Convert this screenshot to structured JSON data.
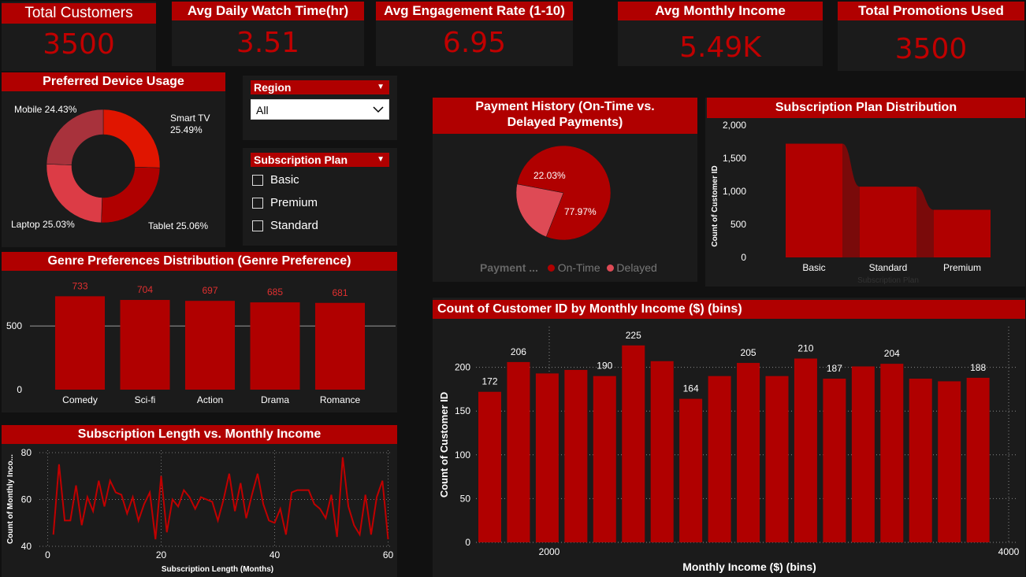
{
  "kpis": [
    {
      "title": "Total Customers",
      "value": "3500"
    },
    {
      "title": "Avg Daily Watch Time(hr)",
      "value": "3.51"
    },
    {
      "title": "Avg Engagement Rate (1-10)",
      "value": "6.95"
    },
    {
      "title": "Avg Monthly Income",
      "value": "5.49K"
    },
    {
      "title": "Total Promotions Used",
      "value": "3500"
    }
  ],
  "device": {
    "title": "Preferred Device Usage",
    "labels": [
      "Mobile 24.43%",
      "Smart TV",
      "25.49%",
      "Tablet 25.06%",
      "Laptop 25.03%"
    ]
  },
  "region_slicer": {
    "title": "Region",
    "selected": "All"
  },
  "plan_slicer": {
    "title": "Subscription Plan",
    "options": [
      "Basic",
      "Premium",
      "Standard"
    ]
  },
  "payment": {
    "title": "Payment History (On-Time vs. Delayed Payments)",
    "legend_title": "Payment ...",
    "legend": [
      "On-Time",
      "Delayed"
    ],
    "pct_on_time": "77.97%",
    "pct_delayed": "22.03%"
  },
  "plan_dist": {
    "title": "Subscription Plan Distribution",
    "ylabel": "Count of Customer ID",
    "xlabel": "Subscription Plan"
  },
  "genre": {
    "title": "Genre Preferences Distribution (Genre Preference)"
  },
  "sub_len": {
    "title": "Subscription Length vs. Monthly Income",
    "xlabel": "Subscription Length (Months)",
    "ylabel": "Count of Monthly Inco..."
  },
  "income": {
    "title": "Count of Customer ID by Monthly Income ($) (bins)",
    "xlabel": "Monthly Income ($) (bins)",
    "ylabel": "Count of Customer ID"
  },
  "colors": {
    "accent": "#b00000",
    "bar": "#b00000",
    "bg": "#111111",
    "panel": "#1b1b1b"
  },
  "chart_data": [
    {
      "type": "pie",
      "name": "device",
      "categories": [
        "Smart TV",
        "Tablet",
        "Laptop",
        "Mobile"
      ],
      "values": [
        25.49,
        25.06,
        25.03,
        24.43
      ],
      "colors": [
        "#e01500",
        "#b00000",
        "#dc3c46",
        "#a8323c"
      ]
    },
    {
      "type": "pie",
      "name": "payment",
      "categories": [
        "On-Time",
        "Delayed"
      ],
      "values": [
        77.97,
        22.03
      ],
      "colors": [
        "#b00000",
        "#de4a55"
      ]
    },
    {
      "type": "bar",
      "name": "plan",
      "categories": [
        "Basic",
        "Standard",
        "Premium"
      ],
      "values": [
        1720,
        1070,
        720
      ],
      "ylim": [
        0,
        2000
      ],
      "yticks": [
        "0",
        "500",
        "1,000",
        "1,500",
        "2,000"
      ]
    },
    {
      "type": "bar",
      "name": "genre",
      "categories": [
        "Comedy",
        "Sci-fi",
        "Action",
        "Drama",
        "Romance"
      ],
      "values": [
        733,
        704,
        697,
        685,
        681
      ],
      "ylim": [
        0,
        800
      ],
      "yticks": [
        "0",
        "500"
      ]
    },
    {
      "type": "line",
      "name": "sublen",
      "x": [
        1,
        2,
        3,
        4,
        5,
        6,
        7,
        8,
        9,
        10,
        11,
        12,
        13,
        14,
        15,
        16,
        17,
        18,
        19,
        20,
        21,
        22,
        23,
        24,
        25,
        26,
        27,
        28,
        29,
        30,
        31,
        32,
        33,
        34,
        35,
        36,
        37,
        38,
        39,
        40,
        41,
        42,
        43,
        44,
        45,
        46,
        47,
        48,
        49,
        50,
        51,
        52,
        53,
        54,
        55,
        56,
        57,
        58,
        59,
        60
      ],
      "y": [
        45,
        75,
        51,
        51,
        66,
        49,
        61,
        55,
        68,
        57,
        68,
        63,
        62,
        54,
        61,
        51,
        58,
        63,
        43,
        70,
        46,
        60,
        57,
        64,
        61,
        56,
        61,
        60,
        59,
        51,
        60,
        71,
        55,
        67,
        52,
        62,
        71,
        58,
        51,
        50,
        56,
        45,
        63,
        64,
        64,
        64,
        58,
        56,
        52,
        62,
        44,
        78,
        57,
        49,
        45,
        62,
        45,
        61,
        68,
        43
      ],
      "ylim": [
        40,
        80
      ],
      "xticks": [
        "0",
        "20",
        "40",
        "60"
      ],
      "yticks": [
        "40",
        "60",
        "80"
      ]
    },
    {
      "type": "bar",
      "name": "income",
      "x": [
        1000,
        1500,
        2000,
        2500,
        3000,
        3500,
        4000,
        4500,
        5000,
        5500,
        6000,
        6500,
        7000,
        7500,
        8000,
        8500,
        9000,
        9500
      ],
      "values": [
        172,
        206,
        193,
        197,
        190,
        225,
        207,
        164,
        190,
        205,
        190,
        210,
        187,
        201,
        204,
        187,
        184,
        188
      ],
      "labels_shown": {
        "0": "172",
        "1": "206",
        "4": "190",
        "5": "225",
        "7": "164",
        "9": "205",
        "11": "210",
        "12": "187",
        "14": "204",
        "17": "188"
      },
      "ylim": [
        0,
        250
      ],
      "xticks": [
        "2000",
        "4000",
        "6000",
        "8000",
        "10000"
      ],
      "yticks": [
        "0",
        "50",
        "100",
        "150",
        "200"
      ]
    }
  ]
}
